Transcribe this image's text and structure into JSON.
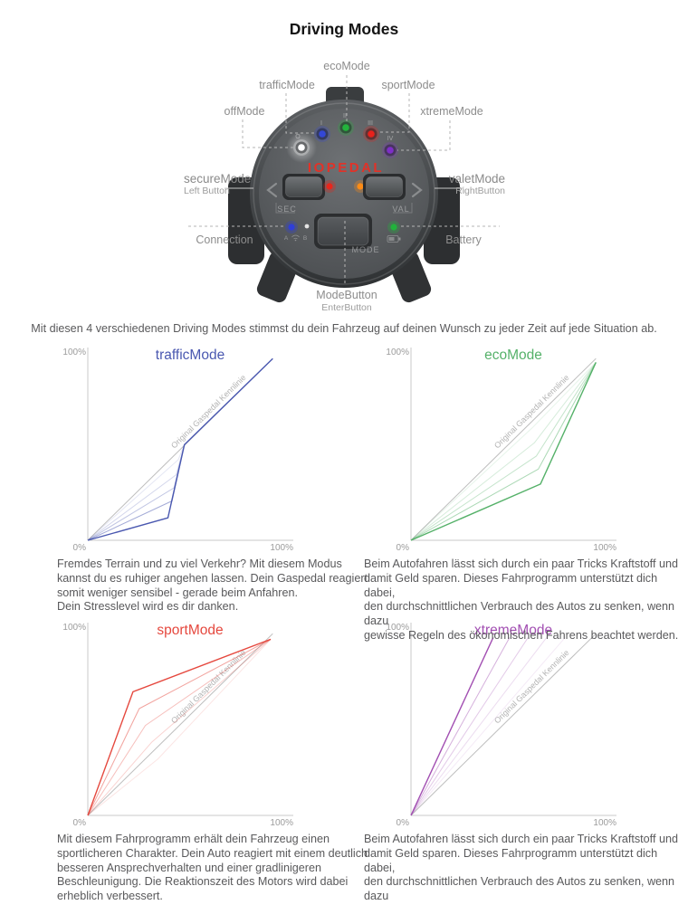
{
  "page": {
    "title": "Driving Modes",
    "intro": "Mit diesen 4 verschiedenen Driving Modes stimmst du dein Fahrzeug auf deinen Wunsch zu jeder Zeit auf jede Situation ab."
  },
  "device": {
    "logo": "IOPEDAL",
    "mode_numerals": [
      "O",
      "I",
      "II",
      "III",
      "IV"
    ],
    "buttons": {
      "sec": "SEC",
      "val": "VAL",
      "mode": "MODE"
    },
    "callouts": {
      "eco": "ecoMode",
      "traffic": "trafficMode",
      "sport": "sportMode",
      "off": "offMode",
      "xtreme": "xtremeMode",
      "secure": "secureMode",
      "secure_sub": "Left Button",
      "valet": "valetMode",
      "valet_sub": "RightButton",
      "connection": "Connection",
      "battery": "Battery",
      "mode": "ModeButton",
      "mode_sub": "EnterButton"
    },
    "connection_markers": {
      "a": "A",
      "b": "B"
    },
    "led_colors": {
      "off": "#ffffff",
      "traffic": "#3347d6",
      "eco": "#23b33c",
      "sport": "#e8211c",
      "xtreme": "#7e2ec8",
      "secure": "#e8261c",
      "valet": "#ff8c15",
      "connection": "#2f3ed8",
      "connection2": "#e4e4e4",
      "battery": "#21b33b"
    }
  },
  "chart_data": [
    {
      "type": "line",
      "title": "trafficMode",
      "color": "#4a58b0",
      "axis": {
        "y_top": "100%",
        "origin": "0%",
        "x_right": "100%",
        "xlim": [
          0,
          100
        ],
        "ylim": [
          0,
          100
        ]
      },
      "reference": {
        "label": "Original Gaspedal Kennlinie",
        "color": "#bdbdbd",
        "points": [
          [
            0,
            0
          ],
          [
            90,
            97
          ]
        ]
      },
      "main_line": {
        "points": [
          [
            0,
            0
          ],
          [
            39,
            12
          ],
          [
            47,
            51
          ],
          [
            90,
            97
          ]
        ]
      },
      "aux_lines": [
        {
          "points": [
            [
              0,
              0
            ],
            [
              41,
              21
            ],
            [
              47,
              51
            ]
          ],
          "opacity": 0.5
        },
        {
          "points": [
            [
              0,
              0
            ],
            [
              42,
              28
            ],
            [
              47,
              51
            ]
          ],
          "opacity": 0.35
        },
        {
          "points": [
            [
              0,
              0
            ],
            [
              43,
              35
            ],
            [
              47,
              51
            ]
          ],
          "opacity": 0.24
        },
        {
          "points": [
            [
              0,
              0
            ],
            [
              44,
              43
            ],
            [
              47,
              51
            ]
          ],
          "opacity": 0.14
        }
      ]
    },
    {
      "type": "line",
      "title": "ecoMode",
      "color": "#55b169",
      "axis": {
        "y_top": "100%",
        "origin": "0%",
        "x_right": "100%",
        "xlim": [
          0,
          100
        ],
        "ylim": [
          0,
          100
        ]
      },
      "reference": {
        "label": "Original Gaspedal Kennlinie",
        "color": "#bdbdbd",
        "points": [
          [
            0,
            0
          ],
          [
            90,
            97
          ]
        ]
      },
      "main_line": {
        "points": [
          [
            0,
            0
          ],
          [
            63,
            30
          ],
          [
            90,
            95
          ]
        ]
      },
      "aux_lines": [
        {
          "points": [
            [
              0,
              0
            ],
            [
              62,
              38
            ],
            [
              90,
              95
            ]
          ],
          "opacity": 0.5
        },
        {
          "points": [
            [
              0,
              0
            ],
            [
              61,
              45
            ],
            [
              90,
              95
            ]
          ],
          "opacity": 0.35
        },
        {
          "points": [
            [
              0,
              0
            ],
            [
              60,
              52
            ],
            [
              90,
              95
            ]
          ],
          "opacity": 0.24
        },
        {
          "points": [
            [
              0,
              0
            ],
            [
              59,
              60
            ],
            [
              90,
              95
            ]
          ],
          "opacity": 0.14
        }
      ]
    },
    {
      "type": "line",
      "title": "sportMode",
      "color": "#e5483e",
      "axis": {
        "y_top": "100%",
        "origin": "0%",
        "x_right": "100%",
        "xlim": [
          0,
          100
        ],
        "ylim": [
          0,
          100
        ]
      },
      "reference": {
        "label": "Original Gaspedal Kennlinie",
        "color": "#bdbdbd",
        "points": [
          [
            0,
            0
          ],
          [
            90,
            97
          ]
        ]
      },
      "main_line": {
        "points": [
          [
            0,
            0
          ],
          [
            22,
            66
          ],
          [
            89,
            94
          ]
        ]
      },
      "aux_lines": [
        {
          "points": [
            [
              0,
              0
            ],
            [
              25,
              57
            ],
            [
              89,
              94
            ]
          ],
          "opacity": 0.5
        },
        {
          "points": [
            [
              0,
              0
            ],
            [
              28,
              48
            ],
            [
              89,
              94
            ]
          ],
          "opacity": 0.35
        },
        {
          "points": [
            [
              0,
              0
            ],
            [
              31,
              39
            ],
            [
              89,
              94
            ]
          ],
          "opacity": 0.24
        },
        {
          "points": [
            [
              0,
              0
            ],
            [
              34,
              30
            ],
            [
              89,
              94
            ]
          ],
          "opacity": 0.14
        }
      ]
    },
    {
      "type": "line",
      "title": "xtremeMode",
      "color": "#a24fb2",
      "axis": {
        "y_top": "100%",
        "origin": "0%",
        "x_right": "100%",
        "xlim": [
          0,
          100
        ],
        "ylim": [
          0,
          100
        ]
      },
      "reference": {
        "label": "Original Gaspedal Kennlinie",
        "color": "#bdbdbd",
        "points": [
          [
            0,
            0
          ],
          [
            90,
            97
          ]
        ]
      },
      "main_line": {
        "points": [
          [
            0,
            0
          ],
          [
            40,
            95
          ]
        ]
      },
      "aux_lines": [
        {
          "points": [
            [
              0,
              0
            ],
            [
              48,
              95
            ]
          ],
          "opacity": 0.45
        },
        {
          "points": [
            [
              0,
              0
            ],
            [
              57,
              95
            ]
          ],
          "opacity": 0.3
        },
        {
          "points": [
            [
              0,
              0
            ],
            [
              66,
              95
            ]
          ],
          "opacity": 0.2
        },
        {
          "points": [
            [
              0,
              0
            ],
            [
              75,
              95
            ]
          ],
          "opacity": 0.12
        }
      ]
    }
  ],
  "descriptions": {
    "traffic": "Fremdes Terrain und zu viel Verkehr? Mit diesem Modus\nkannst du es ruhiger angehen lassen. Dein Gaspedal reagiert\nsomit weniger sensibel - gerade beim Anfahren.\nDein Stresslevel wird es dir danken.",
    "eco": "Beim Autofahren lässt sich durch ein paar Tricks Kraftstoff und\ndamit Geld sparen. Dieses Fahrprogramm unterstützt dich dabei,\nden durchschnittlichen Verbrauch des Autos zu senken,  wenn dazu\ngewisse Regeln des ökonomischen Fahrens beachtet werden.",
    "sport": "Mit diesem Fahrprogramm erhält dein Fahrzeug einen\nsportlicheren Charakter. Dein Auto reagiert mit einem deutlich\nbesseren Ansprechverhalten und einer gradlinigeren\nBeschleunigung. Die Reaktionszeit des Motors wird dabei\nerheblich verbessert.",
    "xtreme": "Beim Autofahren lässt sich durch ein paar Tricks Kraftstoff und\ndamit Geld sparen. Dieses Fahrprogramm unterstützt dich dabei,\nden durchschnittlichen Verbrauch des Autos zu senken,  wenn dazu\ngewisse Regeln des ökonomischen Fahrens beachtet werden."
  }
}
